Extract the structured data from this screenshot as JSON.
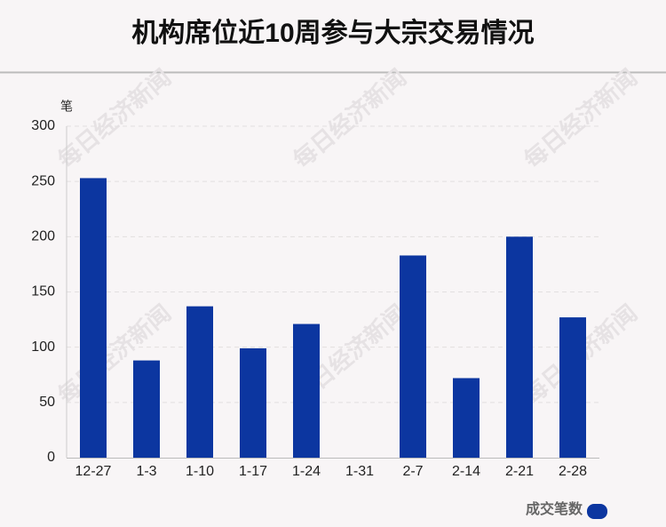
{
  "chart_data": {
    "type": "bar",
    "title": "机构席位近10周参与大宗交易情况",
    "y_unit": "笔",
    "categories": [
      "12-27",
      "1-3",
      "1-10",
      "1-17",
      "1-24",
      "1-31",
      "2-7",
      "2-14",
      "2-21",
      "2-28"
    ],
    "series": [
      {
        "name": "成交笔数",
        "color": "#0c36a0",
        "values": [
          253,
          88,
          137,
          99,
          121,
          0,
          183,
          72,
          200,
          127
        ]
      }
    ],
    "ylim": [
      0,
      300
    ],
    "yticks": [
      0,
      50,
      100,
      150,
      200,
      250,
      300
    ],
    "grid": true,
    "legend": "bottom-right",
    "watermark": "每日经济新闻"
  }
}
